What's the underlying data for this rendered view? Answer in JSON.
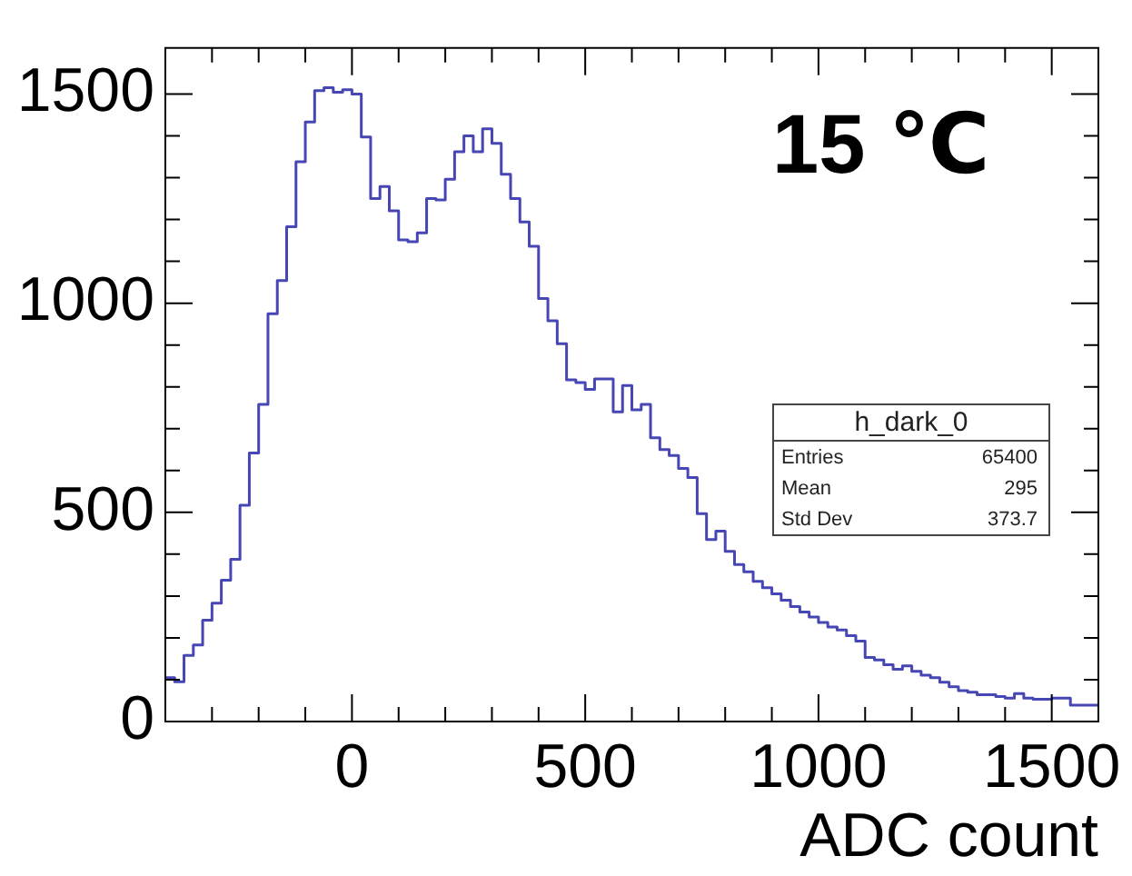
{
  "chart_data": {
    "type": "histogram",
    "xlabel": "ADC count",
    "annotations": [
      "15 ℃",
      "h_dark_0",
      "Entries",
      "65400",
      "Mean",
      "295",
      "Std Dev",
      "373.7"
    ],
    "bins": [
      -400,
      -380,
      -360,
      -340,
      -320,
      -300,
      -280,
      -260,
      -240,
      -220,
      -200,
      -180,
      -160,
      -140,
      -120,
      -100,
      -80,
      -60,
      -40,
      -20,
      0,
      20,
      40,
      60,
      80,
      100,
      120,
      140,
      160,
      180,
      200,
      220,
      240,
      260,
      280,
      300,
      320,
      340,
      360,
      380,
      400,
      420,
      440,
      460,
      480,
      500,
      520,
      540,
      560,
      580,
      600,
      620,
      640,
      660,
      680,
      700,
      720,
      740,
      760,
      780,
      800,
      820,
      840,
      860,
      880,
      900,
      920,
      940,
      960,
      980,
      1000,
      1020,
      1040,
      1060,
      1080,
      1100,
      1120,
      1140,
      1160,
      1180,
      1200,
      1220,
      1240,
      1260,
      1280,
      1300,
      1320,
      1340,
      1360,
      1380,
      1400,
      1420,
      1440,
      1460,
      1480,
      1500,
      1520,
      1540,
      1560,
      1580,
      1600
    ],
    "values": [
      105,
      95,
      158,
      183,
      242,
      283,
      338,
      388,
      517,
      642,
      758,
      975,
      1054,
      1183,
      1338,
      1433,
      1508,
      1515,
      1504,
      1510,
      1500,
      1397,
      1250,
      1279,
      1221,
      1151,
      1147,
      1168,
      1250,
      1247,
      1296,
      1362,
      1400,
      1362,
      1417,
      1382,
      1308,
      1250,
      1194,
      1136,
      1011,
      958,
      903,
      817,
      810,
      794,
      819,
      819,
      740,
      803,
      745,
      758,
      678,
      650,
      636,
      605,
      583,
      497,
      435,
      455,
      407,
      375,
      358,
      335,
      320,
      305,
      290,
      275,
      262,
      250,
      237,
      226,
      219,
      205,
      192,
      153,
      147,
      136,
      125,
      133,
      120,
      111,
      105,
      94,
      83,
      74,
      70,
      64,
      64,
      60,
      56,
      67,
      56,
      53,
      53,
      56,
      56,
      39,
      39,
      39
    ],
    "color": "#4646b4",
    "xlim": [
      -400,
      1600
    ],
    "xticks": [
      {
        "value": -300,
        "label": null
      },
      {
        "value": -200,
        "label": null
      },
      {
        "value": -100,
        "label": null
      },
      0,
      {
        "value": 100,
        "label": null
      },
      {
        "value": 200,
        "label": null
      },
      {
        "value": 300,
        "label": null
      },
      {
        "value": 400,
        "label": null
      },
      500,
      {
        "value": 600,
        "label": null
      },
      {
        "value": 700,
        "label": null
      },
      {
        "value": 800,
        "label": null
      },
      {
        "value": 900,
        "label": null
      },
      1000,
      {
        "value": 1100,
        "label": null
      },
      {
        "value": 1200,
        "label": null
      },
      {
        "value": 1300,
        "label": null
      },
      {
        "value": 1400,
        "label": null
      },
      1500
    ],
    "ylim": [
      0,
      1610
    ],
    "yticks": [
      0,
      {
        "value": 100,
        "label": null
      },
      {
        "value": 200,
        "label": null
      },
      {
        "value": 300,
        "label": null
      },
      {
        "value": 400,
        "label": null
      },
      500,
      {
        "value": 600,
        "label": null
      },
      {
        "value": 700,
        "label": null
      },
      {
        "value": 800,
        "label": null
      },
      {
        "value": 900,
        "label": null
      },
      1000,
      {
        "value": 1100,
        "label": null
      },
      {
        "value": 1200,
        "label": null
      },
      {
        "value": 1300,
        "label": null
      },
      {
        "value": 1400,
        "label": null
      },
      1500
    ]
  }
}
